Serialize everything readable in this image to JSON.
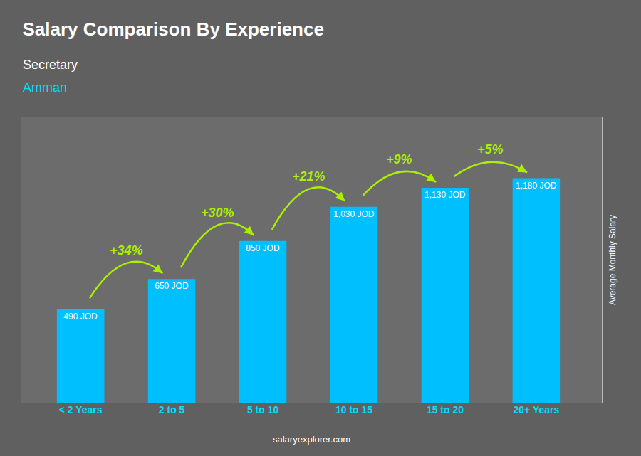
{
  "chart_data": {
    "type": "bar",
    "title": "Salary Comparison By Experience",
    "subtitle": [
      "Secretary",
      "Amman"
    ],
    "categories": [
      "< 2 Years",
      "2 to 5",
      "5 to 10",
      "10 to 15",
      "15 to 20",
      "20+ Years"
    ],
    "values": [
      490,
      650,
      850,
      1030,
      1130,
      1180
    ],
    "value_labels": [
      "490 JOD",
      "650 JOD",
      "850 JOD",
      "1,030 JOD",
      "1,130 JOD",
      "1,180 JOD"
    ],
    "data_labels": true,
    "color": "#00BFFF",
    "ylabel": "Average Monthly Salary",
    "ylim": [
      0,
      1500
    ],
    "tick_labels": "x",
    "grid": false,
    "annotations": {
      "changes": [
        "+34%",
        "+30%",
        "+21%",
        "+9%",
        "+5%"
      ],
      "footer": "salaryexplorer.com"
    }
  }
}
